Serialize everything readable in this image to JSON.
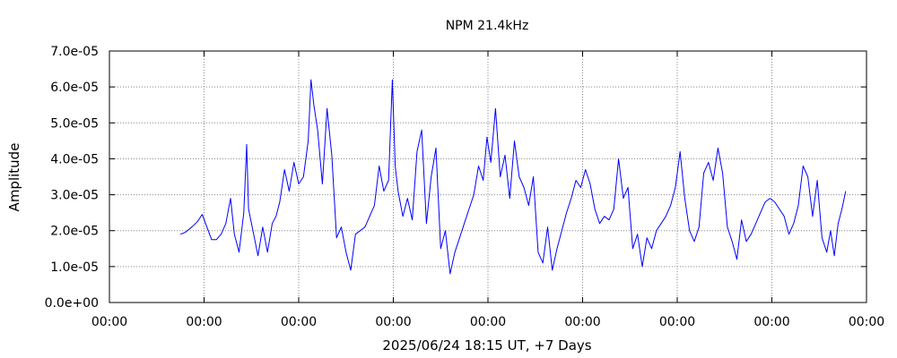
{
  "chart_data": {
    "type": "line",
    "title": "NPM 21.4kHz",
    "xlabel": "2025/06/24 18:15 UT, +7 Days",
    "ylabel": "Amplitude",
    "ylim": [
      0,
      7e-05
    ],
    "xlim": [
      0,
      8
    ],
    "x_unit": "days",
    "grid": true,
    "line_color": "#0000ff",
    "y_ticks": [
      0,
      1e-05,
      2e-05,
      3e-05,
      4e-05,
      5e-05,
      6e-05,
      7e-05
    ],
    "y_tick_labels": [
      "0.0e+00",
      "1.0e-05",
      "2.0e-05",
      "3.0e-05",
      "4.0e-05",
      "5.0e-05",
      "6.0e-05",
      "7.0e-05"
    ],
    "x_ticks": [
      0,
      1,
      2,
      3,
      4,
      5,
      6,
      7,
      8
    ],
    "x_tick_labels": [
      "00:00",
      "00:00",
      "00:00",
      "00:00",
      "00:00",
      "00:00",
      "00:00",
      "00:00",
      "00:00"
    ],
    "series": [
      {
        "x": [
          0.75,
          0.8,
          0.87,
          0.93,
          0.98,
          1.03,
          1.08,
          1.13,
          1.18,
          1.23,
          1.28,
          1.32,
          1.37,
          1.42,
          1.45,
          1.47,
          1.52,
          1.57,
          1.62,
          1.67,
          1.72,
          1.76,
          1.8,
          1.85,
          1.9,
          1.95,
          2.0,
          2.05,
          2.1,
          2.13,
          2.16,
          2.2,
          2.25,
          2.3,
          2.35,
          2.4,
          2.45,
          2.5,
          2.55,
          2.6,
          2.65,
          2.7,
          2.75,
          2.8,
          2.85,
          2.9,
          2.95,
          2.99,
          3.02,
          3.05,
          3.1,
          3.15,
          3.2,
          3.25,
          3.3,
          3.35,
          3.4,
          3.45,
          3.5,
          3.55,
          3.6,
          3.65,
          3.7,
          3.75,
          3.8,
          3.85,
          3.9,
          3.95,
          3.99,
          4.03,
          4.08,
          4.13,
          4.18,
          4.23,
          4.28,
          4.33,
          4.38,
          4.43,
          4.48,
          4.53,
          4.58,
          4.63,
          4.68,
          4.73,
          4.78,
          4.83,
          4.88,
          4.93,
          4.98,
          5.03,
          5.08,
          5.13,
          5.18,
          5.23,
          5.28,
          5.33,
          5.38,
          5.43,
          5.48,
          5.53,
          5.58,
          5.63,
          5.68,
          5.73,
          5.78,
          5.83,
          5.88,
          5.93,
          5.98,
          6.03,
          6.08,
          6.13,
          6.18,
          6.23,
          6.28,
          6.33,
          6.38,
          6.43,
          6.48,
          6.53,
          6.58,
          6.63,
          6.68,
          6.73,
          6.78,
          6.83,
          6.88,
          6.93,
          6.98,
          7.03,
          7.08,
          7.13,
          7.18,
          7.23,
          7.28,
          7.33,
          7.38,
          7.43,
          7.48,
          7.53,
          7.58,
          7.62,
          7.66,
          7.7,
          7.74,
          7.78
        ],
        "y": [
          1.9e-05,
          1.95e-05,
          2.1e-05,
          2.25e-05,
          2.45e-05,
          2.1e-05,
          1.75e-05,
          1.75e-05,
          1.9e-05,
          2.2e-05,
          2.9e-05,
          1.9e-05,
          1.4e-05,
          2.5e-05,
          4.4e-05,
          2.6e-05,
          1.95e-05,
          1.3e-05,
          2.1e-05,
          1.4e-05,
          2.2e-05,
          2.4e-05,
          2.8e-05,
          3.7e-05,
          3.1e-05,
          3.9e-05,
          3.3e-05,
          3.5e-05,
          4.5e-05,
          6.2e-05,
          5.5e-05,
          4.8e-05,
          3.3e-05,
          5.4e-05,
          4.1e-05,
          1.8e-05,
          2.1e-05,
          1.4e-05,
          9e-06,
          1.9e-05,
          2e-05,
          2.1e-05,
          2.4e-05,
          2.7e-05,
          3.8e-05,
          3.1e-05,
          3.4e-05,
          6.2e-05,
          3.8e-05,
          3.1e-05,
          2.4e-05,
          2.9e-05,
          2.3e-05,
          4.2e-05,
          4.8e-05,
          2.2e-05,
          3.5e-05,
          4.3e-05,
          1.5e-05,
          2e-05,
          8e-06,
          1.4e-05,
          1.8e-05,
          2.2e-05,
          2.6e-05,
          3e-05,
          3.8e-05,
          3.4e-05,
          4.6e-05,
          3.9e-05,
          5.4e-05,
          3.5e-05,
          4.1e-05,
          2.9e-05,
          4.5e-05,
          3.5e-05,
          3.2e-05,
          2.7e-05,
          3.5e-05,
          1.4e-05,
          1.1e-05,
          2.1e-05,
          9e-06,
          1.5e-05,
          2e-05,
          2.5e-05,
          2.9e-05,
          3.4e-05,
          3.2e-05,
          3.7e-05,
          3.3e-05,
          2.6e-05,
          2.2e-05,
          2.4e-05,
          2.3e-05,
          2.6e-05,
          4e-05,
          2.9e-05,
          3.2e-05,
          1.5e-05,
          1.9e-05,
          1e-05,
          1.8e-05,
          1.5e-05,
          2e-05,
          2.2e-05,
          2.4e-05,
          2.7e-05,
          3.2e-05,
          4.2e-05,
          2.9e-05,
          2e-05,
          1.7e-05,
          2.1e-05,
          3.6e-05,
          3.9e-05,
          3.4e-05,
          4.3e-05,
          3.6e-05,
          2.1e-05,
          1.7e-05,
          1.2e-05,
          2.3e-05,
          1.7e-05,
          1.9e-05,
          2.2e-05,
          2.5e-05,
          2.8e-05,
          2.9e-05,
          2.8e-05,
          2.6e-05,
          2.4e-05,
          1.9e-05,
          2.2e-05,
          2.7e-05,
          3.8e-05,
          3.5e-05,
          2.4e-05,
          3.4e-05,
          1.8e-05,
          1.4e-05,
          2e-05,
          1.3e-05,
          2.2e-05,
          2.6e-05,
          3.1e-05
        ]
      }
    ]
  }
}
